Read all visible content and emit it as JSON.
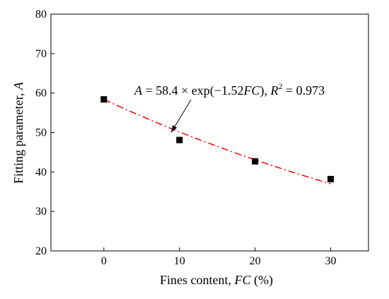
{
  "chart_data": {
    "type": "scatter",
    "xlabel": {
      "prefix": "Fines content, ",
      "var": "FC",
      "suffix": " (%)"
    },
    "ylabel": {
      "prefix": "Fitting parameter, ",
      "var": "A"
    },
    "xlim": [
      -7,
      35
    ],
    "ylim": [
      20,
      80
    ],
    "xticks": [
      0,
      10,
      20,
      30
    ],
    "yticks": [
      20,
      30,
      40,
      50,
      60,
      70,
      80
    ],
    "grid": false,
    "series": [
      {
        "marker": "square",
        "color": "#000000",
        "points": [
          {
            "x": 0,
            "y": 58.4
          },
          {
            "x": 10,
            "y": 48.1
          },
          {
            "x": 20,
            "y": 42.7
          },
          {
            "x": 30,
            "y": 38.2
          }
        ]
      }
    ],
    "fit": {
      "a": 58.4,
      "b": -1.52,
      "x_range": [
        0,
        30
      ],
      "color": "#ff0000",
      "line_style": "dash-dot"
    },
    "annotation": {
      "A": "A",
      "eq": " = 58.4 × exp(−1.52",
      "FC": "FC",
      "close": "), ",
      "R": "R",
      "sup": "2",
      "val": " = 0.973",
      "arrow_target_data": {
        "x": 8.9,
        "y": 50.0
      }
    }
  }
}
